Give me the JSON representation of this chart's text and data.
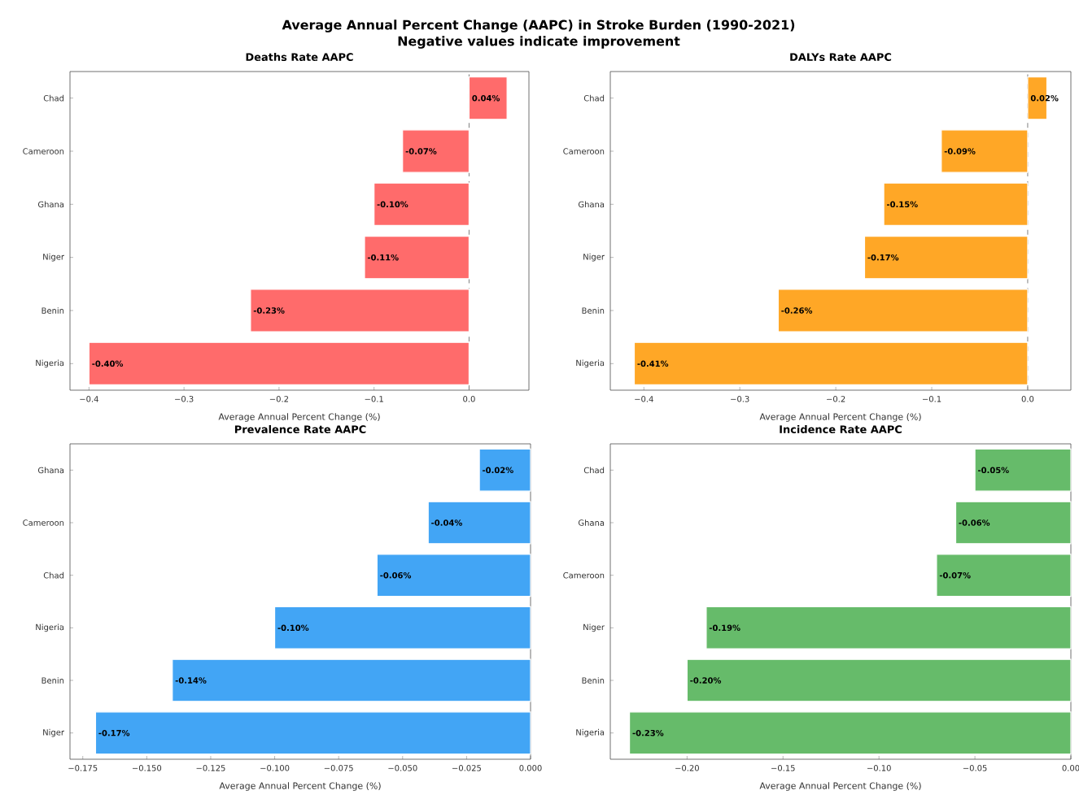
{
  "chart_data": [
    {
      "type": "other",
      "title": "Average Annual Percent Change (AAPC) in Stroke Burden (1990-2021)",
      "subtitle": "Negative values indicate improvement"
    },
    {
      "type": "bar",
      "orientation": "horizontal",
      "title": "Deaths Rate AAPC",
      "xlabel": "Average Annual Percent Change (%)",
      "categories": [
        "Chad",
        "Cameroon",
        "Ghana",
        "Niger",
        "Benin",
        "Nigeria"
      ],
      "values": [
        0.04,
        -0.07,
        -0.1,
        -0.11,
        -0.23,
        -0.4
      ],
      "value_labels": [
        "0.04%",
        "-0.07%",
        "-0.10%",
        "-0.11%",
        "-0.23%",
        "-0.40%"
      ],
      "color": "#ff6b6b",
      "xlim": [
        -0.42,
        0.063
      ],
      "xticks": [
        {
          "value": -0.4,
          "label": "−0.4"
        },
        {
          "value": -0.3,
          "label": "−0.3"
        },
        {
          "value": -0.2,
          "label": "−0.2"
        },
        {
          "value": -0.1,
          "label": "−0.1"
        },
        {
          "value": 0,
          "label": "0.0"
        }
      ],
      "ref_lines": [
        {
          "axis": "x",
          "value": 0,
          "color": "#808080",
          "line_style": "dashed"
        }
      ]
    },
    {
      "type": "bar",
      "orientation": "horizontal",
      "title": "DALYs Rate AAPC",
      "xlabel": "Average Annual Percent Change (%)",
      "categories": [
        "Chad",
        "Cameroon",
        "Ghana",
        "Niger",
        "Benin",
        "Nigeria"
      ],
      "values": [
        0.02,
        -0.09,
        -0.15,
        -0.17,
        -0.26,
        -0.41
      ],
      "value_labels": [
        "0.02%",
        "-0.09%",
        "-0.15%",
        "-0.17%",
        "-0.26%",
        "-0.41%"
      ],
      "color": "#ffa726",
      "xlim": [
        -0.435,
        0.045
      ],
      "xticks": [
        {
          "value": -0.4,
          "label": "−0.4"
        },
        {
          "value": -0.3,
          "label": "−0.3"
        },
        {
          "value": -0.2,
          "label": "−0.2"
        },
        {
          "value": -0.1,
          "label": "−0.1"
        },
        {
          "value": 0,
          "label": "0.0"
        }
      ],
      "ref_lines": [
        {
          "axis": "x",
          "value": 0,
          "color": "#808080",
          "line_style": "dashed"
        }
      ]
    },
    {
      "type": "bar",
      "orientation": "horizontal",
      "title": "Prevalence Rate AAPC",
      "xlabel": "Average Annual Percent Change (%)",
      "categories": [
        "Ghana",
        "Cameroon",
        "Chad",
        "Nigeria",
        "Benin",
        "Niger"
      ],
      "values": [
        -0.02,
        -0.04,
        -0.06,
        -0.1,
        -0.14,
        -0.17
      ],
      "value_labels": [
        "-0.02%",
        "-0.04%",
        "-0.06%",
        "-0.10%",
        "-0.14%",
        "-0.17%"
      ],
      "color": "#42a5f5",
      "xlim": [
        -0.18,
        0
      ],
      "xticks": [
        {
          "value": -0.175,
          "label": "−0.175"
        },
        {
          "value": -0.15,
          "label": "−0.150"
        },
        {
          "value": -0.125,
          "label": "−0.125"
        },
        {
          "value": -0.1,
          "label": "−0.100"
        },
        {
          "value": -0.075,
          "label": "−0.075"
        },
        {
          "value": -0.05,
          "label": "−0.050"
        },
        {
          "value": -0.025,
          "label": "−0.025"
        },
        {
          "value": 0,
          "label": "0.000"
        }
      ]
    },
    {
      "type": "bar",
      "orientation": "horizontal",
      "title": "Incidence Rate AAPC",
      "xlabel": "Average Annual Percent Change (%)",
      "categories": [
        "Chad",
        "Ghana",
        "Cameroon",
        "Niger",
        "Benin",
        "Nigeria"
      ],
      "values": [
        -0.05,
        -0.06,
        -0.07,
        -0.19,
        -0.2,
        -0.23
      ],
      "value_labels": [
        "-0.05%",
        "-0.06%",
        "-0.07%",
        "-0.19%",
        "-0.20%",
        "-0.23%"
      ],
      "color": "#66bb6a",
      "xlim": [
        -0.24,
        0
      ],
      "xticks": [
        {
          "value": -0.2,
          "label": "−0.20"
        },
        {
          "value": -0.15,
          "label": "−0.15"
        },
        {
          "value": -0.1,
          "label": "−0.10"
        },
        {
          "value": -0.05,
          "label": "−0.05"
        },
        {
          "value": 0,
          "label": "0.00"
        }
      ]
    }
  ]
}
